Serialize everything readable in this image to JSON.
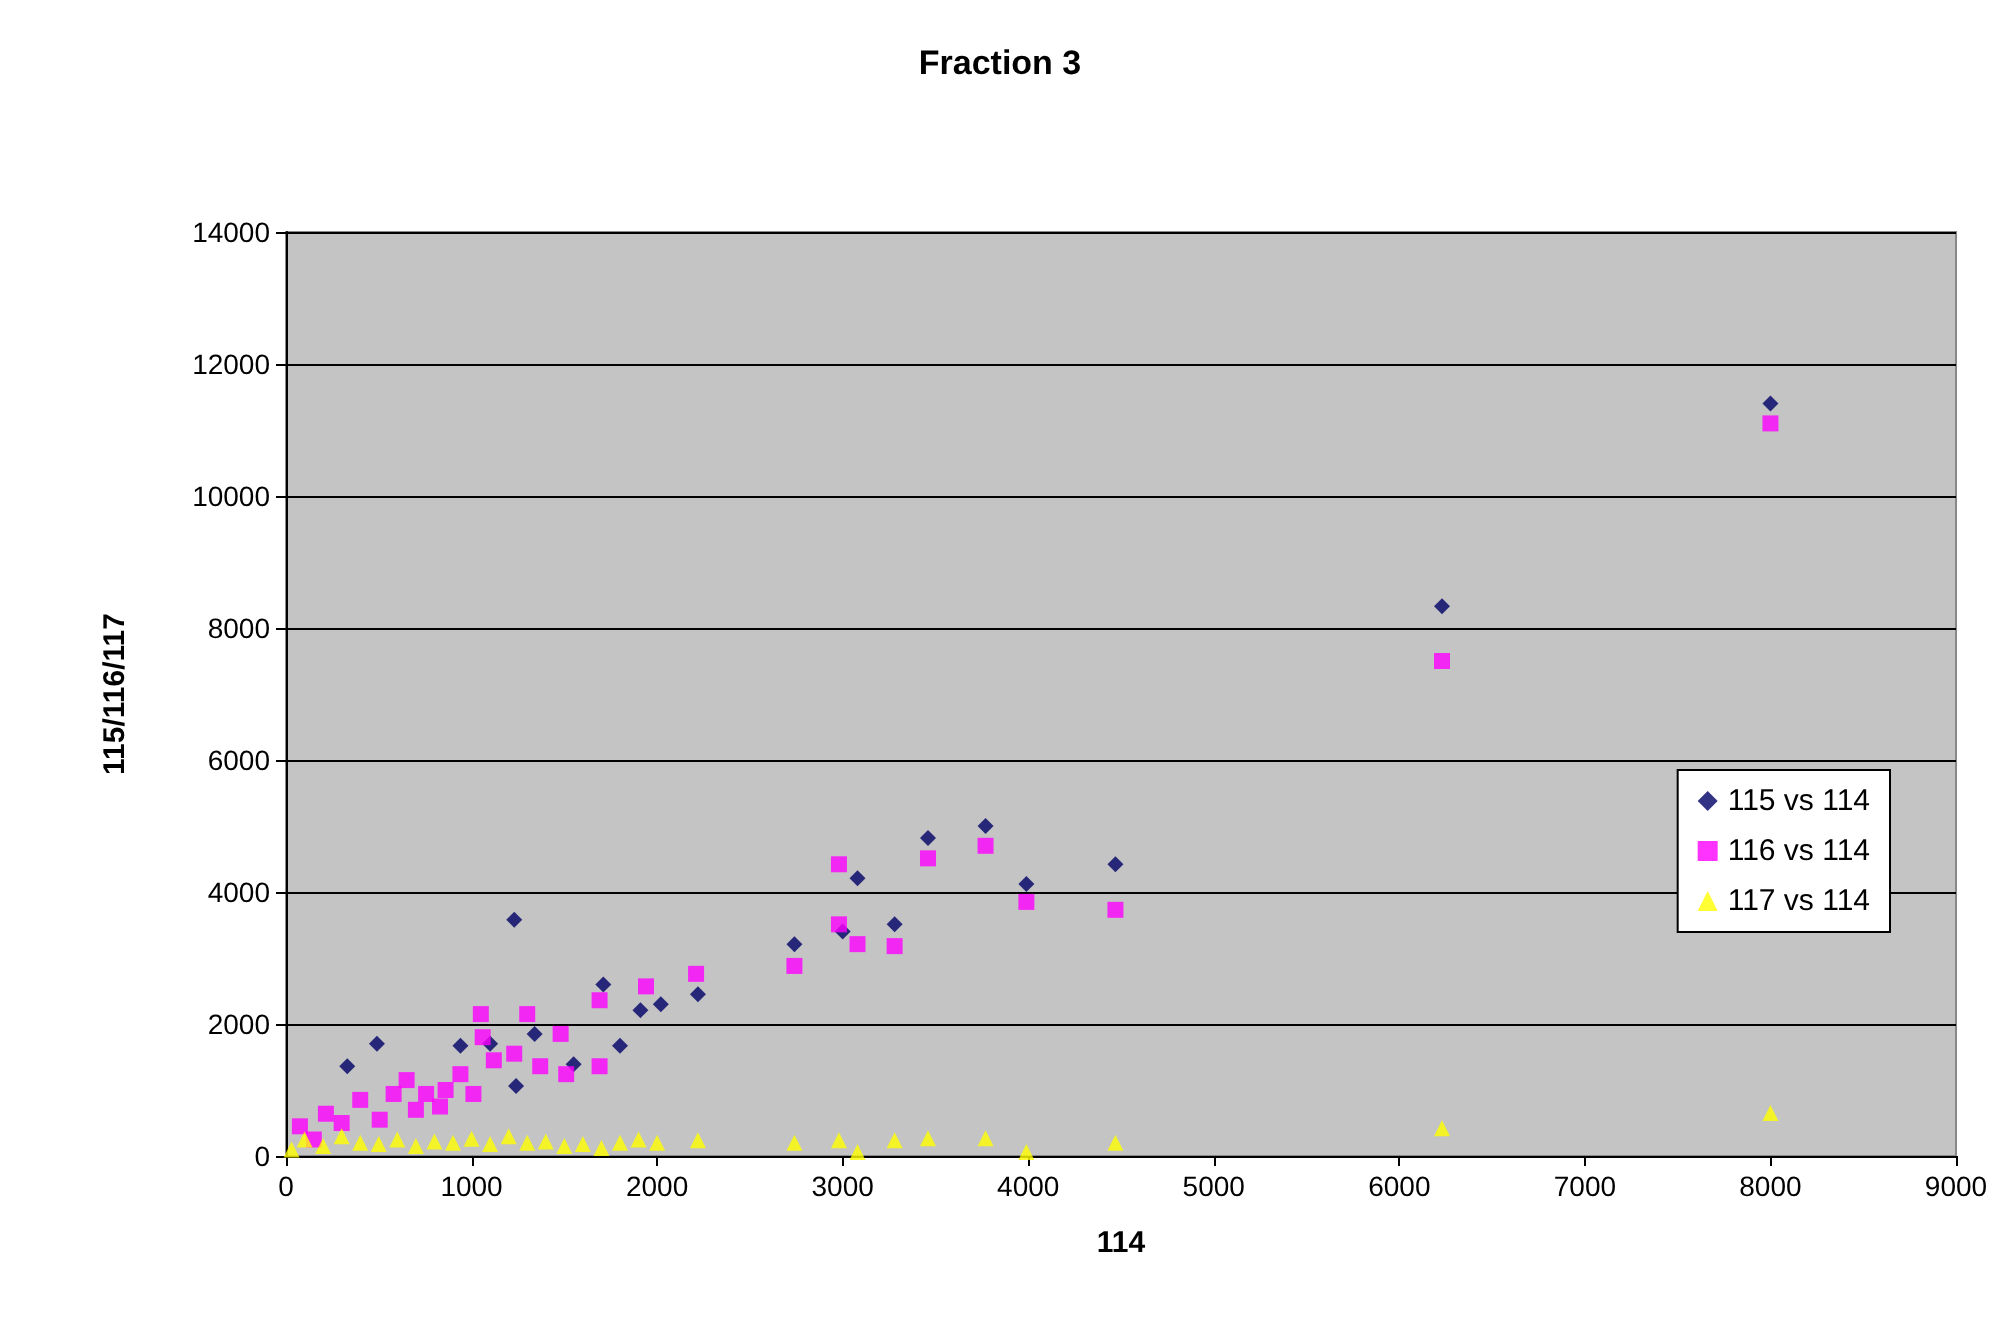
{
  "chart_data": {
    "type": "scatter",
    "title": "Fraction 3",
    "xlabel": "114",
    "ylabel": "115/116/117",
    "xlim": [
      0,
      9000
    ],
    "xticks": [
      0,
      1000,
      2000,
      3000,
      4000,
      5000,
      6000,
      7000,
      8000,
      9000
    ],
    "ylim": [
      0,
      14000
    ],
    "yticks": [
      0,
      2000,
      4000,
      6000,
      8000,
      10000,
      12000,
      14000
    ],
    "grid": "y",
    "legend": "right",
    "series": [
      {
        "name": "115 vs 114",
        "color": "#000066",
        "marker": "diamond",
        "x": [
          8000,
          6230,
          2220,
          2740,
          3080,
          3000,
          3280,
          3460,
          3770,
          3990,
          4470,
          1230,
          490,
          330,
          940,
          1100,
          1240,
          1710,
          1800,
          1910,
          2020,
          1550,
          1340
        ],
        "values": [
          11400,
          8330,
          2450,
          3210,
          4210,
          3400,
          3510,
          4820,
          5000,
          4120,
          4420,
          3580,
          1700,
          1360,
          1670,
          1700,
          1060,
          2600,
          1670,
          2210,
          2300,
          1390,
          1850
        ]
      },
      {
        "name": "116 vs 114",
        "color": "#ff00ff",
        "marker": "square",
        "x": [
          8000,
          6230,
          2210,
          2740,
          2980,
          2980,
          3080,
          3280,
          3460,
          3770,
          3990,
          4470,
          1050,
          1300,
          1480,
          1690,
          1940,
          1690,
          1510,
          75,
          215,
          400,
          580,
          755,
          940,
          1120,
          650,
          830,
          505,
          1010,
          1230,
          1370,
          300,
          150,
          700,
          860,
          1060
        ],
        "values": [
          11100,
          7500,
          2760,
          2880,
          4420,
          3510,
          3210,
          3180,
          4510,
          4700,
          3850,
          3730,
          2150,
          2150,
          1850,
          2360,
          2570,
          1360,
          1240,
          450,
          640,
          850,
          940,
          940,
          1240,
          1450,
          1150,
          750,
          550,
          940,
          1550,
          1360,
          500,
          250,
          700,
          1000,
          1800
        ]
      },
      {
        "name": "117 vs 114",
        "color": "#ffff00",
        "marker": "triangle",
        "x": [
          8000,
          6230,
          2220,
          2740,
          2980,
          3080,
          3280,
          3460,
          3770,
          3990,
          4470,
          30,
          100,
          200,
          300,
          400,
          500,
          600,
          700,
          800,
          900,
          1000,
          1100,
          1200,
          1300,
          1400,
          1500,
          1600,
          1700,
          1800,
          1900,
          2000
        ],
        "values": [
          650,
          420,
          240,
          200,
          240,
          60,
          240,
          270,
          270,
          60,
          200,
          100,
          250,
          150,
          300,
          200,
          180,
          250,
          150,
          220,
          200,
          260,
          180,
          300,
          200,
          220,
          150,
          180,
          120,
          200,
          250,
          200
        ]
      }
    ]
  }
}
